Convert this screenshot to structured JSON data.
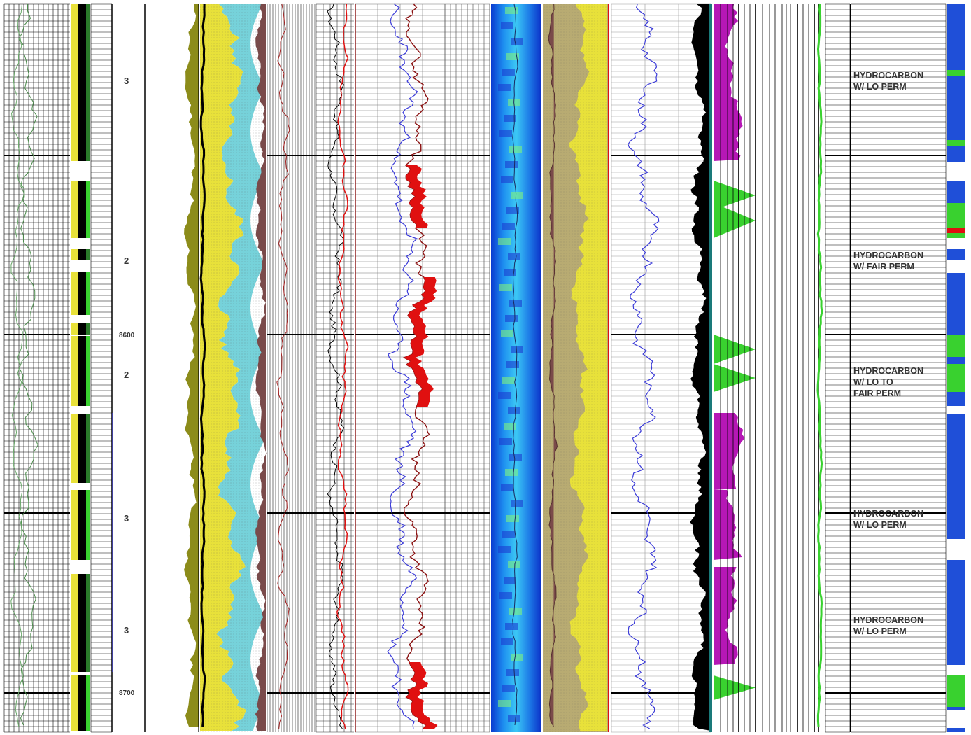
{
  "depth_labels": [
    "8600",
    "8700"
  ],
  "zone_ratings": [
    "3",
    "2",
    "2",
    "3",
    "3"
  ],
  "interpretations": [
    {
      "lines": [
        "HYDROCARBON",
        "W/ LO PERM"
      ]
    },
    {
      "lines": [
        "HYDROCARBON",
        "W/ FAIR PERM"
      ]
    },
    {
      "lines": [
        "HYDROCARBON",
        "W/ LO TO",
        "FAIR PERM"
      ]
    },
    {
      "lines": [
        "HYDROCARBON",
        "W/ LO PERM"
      ]
    },
    {
      "lines": [
        "HYDROCARBON",
        "W/ LO PERM"
      ]
    }
  ],
  "colors": {
    "sand": "#e8e13a",
    "water": "#6fd0d8",
    "shale": "#7a4a4a",
    "hydrocarbon_black": "#000000",
    "gas_magenta": "#b517b5",
    "perm_green": "#39d12f",
    "resistivity_red": "#e01010",
    "resistivity_blue": "#3a3ad8",
    "pay_flag_blue": "#1f4fd8",
    "olive": "#8c8c1a",
    "image_blue": "#1a5fe0",
    "khaki": "#b8ab72"
  }
}
